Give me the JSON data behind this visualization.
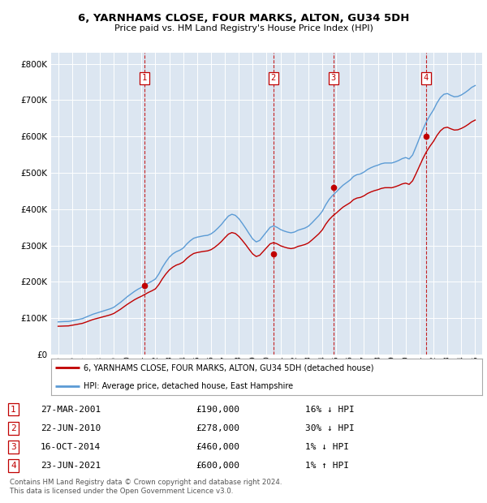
{
  "title": "6, YARNHAMS CLOSE, FOUR MARKS, ALTON, GU34 5DH",
  "subtitle": "Price paid vs. HM Land Registry's House Price Index (HPI)",
  "ytick_values": [
    0,
    100000,
    200000,
    300000,
    400000,
    500000,
    600000,
    700000,
    800000
  ],
  "ylim": [
    0,
    830000
  ],
  "xlim_start": 1994.5,
  "xlim_end": 2025.5,
  "background_color": "#dce6f1",
  "hpi_line_color": "#5b9bd5",
  "price_line_color": "#c00000",
  "transactions": [
    {
      "num": 1,
      "date": "27-MAR-2001",
      "price": 190000,
      "year": 2001.23,
      "price_str": "£190,000",
      "hpi_diff": "16% ↓ HPI"
    },
    {
      "num": 2,
      "date": "22-JUN-2010",
      "price": 278000,
      "year": 2010.47,
      "price_str": "£278,000",
      "hpi_diff": "30% ↓ HPI"
    },
    {
      "num": 3,
      "date": "16-OCT-2014",
      "price": 460000,
      "year": 2014.79,
      "price_str": "£460,000",
      "hpi_diff": "1% ↓ HPI"
    },
    {
      "num": 4,
      "date": "23-JUN-2021",
      "price": 600000,
      "year": 2021.47,
      "price_str": "£600,000",
      "hpi_diff": "1% ↑ HPI"
    }
  ],
  "hpi_data": [
    [
      1995.0,
      90000
    ],
    [
      1995.25,
      90500
    ],
    [
      1995.5,
      91000
    ],
    [
      1995.75,
      91200
    ],
    [
      1996.0,
      93000
    ],
    [
      1996.25,
      95000
    ],
    [
      1996.5,
      97000
    ],
    [
      1996.75,
      99000
    ],
    [
      1997.0,
      103000
    ],
    [
      1997.25,
      107000
    ],
    [
      1997.5,
      111000
    ],
    [
      1997.75,
      114000
    ],
    [
      1998.0,
      117000
    ],
    [
      1998.25,
      120000
    ],
    [
      1998.5,
      123000
    ],
    [
      1998.75,
      126000
    ],
    [
      1999.0,
      130000
    ],
    [
      1999.25,
      137000
    ],
    [
      1999.5,
      144000
    ],
    [
      1999.75,
      152000
    ],
    [
      2000.0,
      160000
    ],
    [
      2000.25,
      167000
    ],
    [
      2000.5,
      174000
    ],
    [
      2000.75,
      180000
    ],
    [
      2001.0,
      185000
    ],
    [
      2001.25,
      191000
    ],
    [
      2001.5,
      197000
    ],
    [
      2001.75,
      202000
    ],
    [
      2002.0,
      208000
    ],
    [
      2002.25,
      222000
    ],
    [
      2002.5,
      240000
    ],
    [
      2002.75,
      255000
    ],
    [
      2003.0,
      268000
    ],
    [
      2003.25,
      277000
    ],
    [
      2003.5,
      283000
    ],
    [
      2003.75,
      287000
    ],
    [
      2004.0,
      293000
    ],
    [
      2004.25,
      304000
    ],
    [
      2004.5,
      313000
    ],
    [
      2004.75,
      320000
    ],
    [
      2005.0,
      323000
    ],
    [
      2005.25,
      325000
    ],
    [
      2005.5,
      327000
    ],
    [
      2005.75,
      328000
    ],
    [
      2006.0,
      332000
    ],
    [
      2006.25,
      339000
    ],
    [
      2006.5,
      348000
    ],
    [
      2006.75,
      358000
    ],
    [
      2007.0,
      370000
    ],
    [
      2007.25,
      381000
    ],
    [
      2007.5,
      386000
    ],
    [
      2007.75,
      383000
    ],
    [
      2008.0,
      374000
    ],
    [
      2008.25,
      361000
    ],
    [
      2008.5,
      347000
    ],
    [
      2008.75,
      332000
    ],
    [
      2009.0,
      318000
    ],
    [
      2009.25,
      310000
    ],
    [
      2009.5,
      314000
    ],
    [
      2009.75,
      326000
    ],
    [
      2010.0,
      338000
    ],
    [
      2010.25,
      350000
    ],
    [
      2010.5,
      354000
    ],
    [
      2010.75,
      350000
    ],
    [
      2011.0,
      344000
    ],
    [
      2011.25,
      340000
    ],
    [
      2011.5,
      337000
    ],
    [
      2011.75,
      335000
    ],
    [
      2012.0,
      337000
    ],
    [
      2012.25,
      342000
    ],
    [
      2012.5,
      345000
    ],
    [
      2012.75,
      348000
    ],
    [
      2013.0,
      353000
    ],
    [
      2013.25,
      362000
    ],
    [
      2013.5,
      372000
    ],
    [
      2013.75,
      382000
    ],
    [
      2014.0,
      394000
    ],
    [
      2014.25,
      412000
    ],
    [
      2014.5,
      427000
    ],
    [
      2014.75,
      438000
    ],
    [
      2015.0,
      447000
    ],
    [
      2015.25,
      457000
    ],
    [
      2015.5,
      466000
    ],
    [
      2015.75,
      473000
    ],
    [
      2016.0,
      480000
    ],
    [
      2016.25,
      490000
    ],
    [
      2016.5,
      495000
    ],
    [
      2016.75,
      497000
    ],
    [
      2017.0,
      502000
    ],
    [
      2017.25,
      509000
    ],
    [
      2017.5,
      514000
    ],
    [
      2017.75,
      518000
    ],
    [
      2018.0,
      521000
    ],
    [
      2018.25,
      525000
    ],
    [
      2018.5,
      527000
    ],
    [
      2018.75,
      527000
    ],
    [
      2019.0,
      527000
    ],
    [
      2019.25,
      530000
    ],
    [
      2019.5,
      534000
    ],
    [
      2019.75,
      539000
    ],
    [
      2020.0,
      542000
    ],
    [
      2020.25,
      538000
    ],
    [
      2020.5,
      549000
    ],
    [
      2020.75,
      572000
    ],
    [
      2021.0,
      596000
    ],
    [
      2021.25,
      620000
    ],
    [
      2021.5,
      641000
    ],
    [
      2021.75,
      658000
    ],
    [
      2022.0,
      673000
    ],
    [
      2022.25,
      692000
    ],
    [
      2022.5,
      707000
    ],
    [
      2022.75,
      716000
    ],
    [
      2023.0,
      718000
    ],
    [
      2023.25,
      713000
    ],
    [
      2023.5,
      709000
    ],
    [
      2023.75,
      710000
    ],
    [
      2024.0,
      714000
    ],
    [
      2024.25,
      720000
    ],
    [
      2024.5,
      727000
    ],
    [
      2024.75,
      735000
    ],
    [
      2025.0,
      740000
    ]
  ],
  "price_paid_data": [
    [
      1995.0,
      78000
    ],
    [
      1995.25,
      78300
    ],
    [
      1995.5,
      78700
    ],
    [
      1995.75,
      79000
    ],
    [
      1996.0,
      80700
    ],
    [
      1996.25,
      82400
    ],
    [
      1996.5,
      84200
    ],
    [
      1996.75,
      86000
    ],
    [
      1997.0,
      89300
    ],
    [
      1997.25,
      92900
    ],
    [
      1997.5,
      96400
    ],
    [
      1997.75,
      99000
    ],
    [
      1998.0,
      101600
    ],
    [
      1998.25,
      104100
    ],
    [
      1998.5,
      106700
    ],
    [
      1998.75,
      109400
    ],
    [
      1999.0,
      113000
    ],
    [
      1999.25,
      119000
    ],
    [
      1999.5,
      125000
    ],
    [
      1999.75,
      132000
    ],
    [
      2000.0,
      138800
    ],
    [
      2000.25,
      144900
    ],
    [
      2000.5,
      151000
    ],
    [
      2000.75,
      156100
    ],
    [
      2001.0,
      160600
    ],
    [
      2001.25,
      165800
    ],
    [
      2001.5,
      171100
    ],
    [
      2001.75,
      175600
    ],
    [
      2002.0,
      180800
    ],
    [
      2002.25,
      192900
    ],
    [
      2002.5,
      208400
    ],
    [
      2002.75,
      221700
    ],
    [
      2003.0,
      232800
    ],
    [
      2003.25,
      240600
    ],
    [
      2003.5,
      246100
    ],
    [
      2003.75,
      249500
    ],
    [
      2004.0,
      254700
    ],
    [
      2004.25,
      264300
    ],
    [
      2004.5,
      272000
    ],
    [
      2004.75,
      278100
    ],
    [
      2005.0,
      280700
    ],
    [
      2005.25,
      282500
    ],
    [
      2005.5,
      284100
    ],
    [
      2005.75,
      285300
    ],
    [
      2006.0,
      288600
    ],
    [
      2006.25,
      294700
    ],
    [
      2006.5,
      302400
    ],
    [
      2006.75,
      311200
    ],
    [
      2007.0,
      321700
    ],
    [
      2007.25,
      331300
    ],
    [
      2007.5,
      335700
    ],
    [
      2007.75,
      333100
    ],
    [
      2008.0,
      325200
    ],
    [
      2008.25,
      314100
    ],
    [
      2008.5,
      302100
    ],
    [
      2008.75,
      289100
    ],
    [
      2009.0,
      276800
    ],
    [
      2009.25,
      269800
    ],
    [
      2009.5,
      273200
    ],
    [
      2009.75,
      283700
    ],
    [
      2010.0,
      294100
    ],
    [
      2010.25,
      304600
    ],
    [
      2010.5,
      308100
    ],
    [
      2010.75,
      304700
    ],
    [
      2011.0,
      299400
    ],
    [
      2011.25,
      296000
    ],
    [
      2011.5,
      293200
    ],
    [
      2011.75,
      291500
    ],
    [
      2012.0,
      293200
    ],
    [
      2012.25,
      297600
    ],
    [
      2012.5,
      300000
    ],
    [
      2012.75,
      302700
    ],
    [
      2013.0,
      307000
    ],
    [
      2013.25,
      314900
    ],
    [
      2013.5,
      323400
    ],
    [
      2013.75,
      332100
    ],
    [
      2014.0,
      342800
    ],
    [
      2014.25,
      358600
    ],
    [
      2014.5,
      371400
    ],
    [
      2014.75,
      381300
    ],
    [
      2015.0,
      389000
    ],
    [
      2015.25,
      397700
    ],
    [
      2015.5,
      405800
    ],
    [
      2015.75,
      411800
    ],
    [
      2016.0,
      417600
    ],
    [
      2016.25,
      426200
    ],
    [
      2016.5,
      430600
    ],
    [
      2016.75,
      432400
    ],
    [
      2017.0,
      436700
    ],
    [
      2017.25,
      443000
    ],
    [
      2017.5,
      447400
    ],
    [
      2017.75,
      450900
    ],
    [
      2018.0,
      453500
    ],
    [
      2018.25,
      457000
    ],
    [
      2018.5,
      459000
    ],
    [
      2018.75,
      459100
    ],
    [
      2019.0,
      458900
    ],
    [
      2019.25,
      461700
    ],
    [
      2019.5,
      465200
    ],
    [
      2019.75,
      469400
    ],
    [
      2020.0,
      471600
    ],
    [
      2020.25,
      468200
    ],
    [
      2020.5,
      478100
    ],
    [
      2020.75,
      498000
    ],
    [
      2021.0,
      519000
    ],
    [
      2021.25,
      540000
    ],
    [
      2021.5,
      558300
    ],
    [
      2021.75,
      573200
    ],
    [
      2022.0,
      586400
    ],
    [
      2022.25,
      602700
    ],
    [
      2022.5,
      615500
    ],
    [
      2022.75,
      623400
    ],
    [
      2023.0,
      625300
    ],
    [
      2023.25,
      621000
    ],
    [
      2023.5,
      617600
    ],
    [
      2023.75,
      618300
    ],
    [
      2024.0,
      622000
    ],
    [
      2024.25,
      626900
    ],
    [
      2024.5,
      633100
    ],
    [
      2024.75,
      640200
    ],
    [
      2025.0,
      645000
    ]
  ],
  "legend_label_red": "6, YARNHAMS CLOSE, FOUR MARKS, ALTON, GU34 5DH (detached house)",
  "legend_label_blue": "HPI: Average price, detached house, East Hampshire",
  "footnote": "Contains HM Land Registry data © Crown copyright and database right 2024.\nThis data is licensed under the Open Government Licence v3.0.",
  "grid_color": "#ffffff",
  "marker_box_color": "#c00000"
}
